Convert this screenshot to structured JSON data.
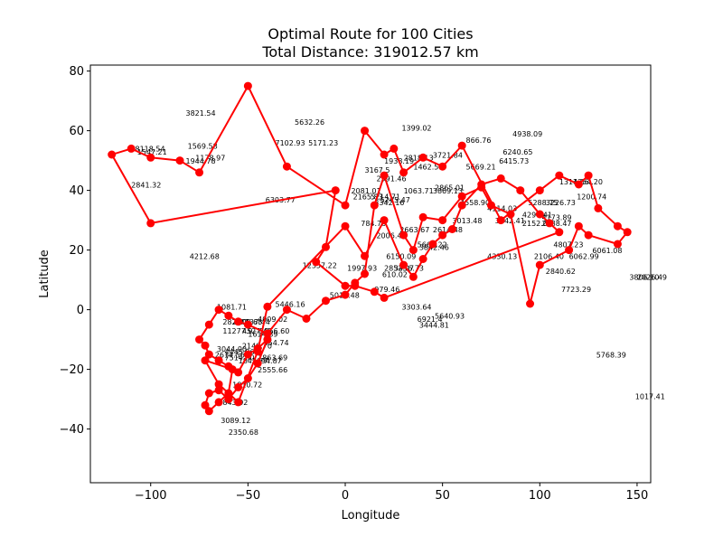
{
  "chart_data": {
    "type": "line",
    "title": "Optimal Route for 100 Cities",
    "subtitle": "Total Distance: 319012.57 km",
    "xlabel": "Longitude",
    "ylabel": "Latitude",
    "xlim": [
      -131,
      157
    ],
    "ylim": [
      -58,
      82
    ],
    "xticks": [
      -150,
      -100,
      -50,
      0,
      50,
      100,
      150
    ],
    "xtick_labels": [
      "−150",
      "−100",
      "−50",
      "0",
      "50",
      "100",
      "150"
    ],
    "yticks": [
      -40,
      -20,
      0,
      20,
      40,
      60,
      80
    ],
    "ytick_labels": [
      "−40",
      "−20",
      "0",
      "20",
      "40",
      "60",
      "80"
    ],
    "grid": false,
    "series_color": "#ff0000",
    "route": {
      "lon": [
        -120,
        -110,
        -100,
        -85,
        -75,
        -50,
        -30,
        0,
        10,
        20,
        25,
        30,
        40,
        50,
        60,
        80,
        100,
        110,
        120,
        125,
        130,
        140,
        145,
        140,
        125,
        120,
        115,
        100,
        95,
        85,
        75,
        70,
        60,
        50,
        40,
        35,
        30,
        20,
        15,
        10,
        5,
        0,
        -10,
        -20,
        -30,
        -40,
        -50,
        -55,
        -60,
        -65,
        -70,
        -75,
        -72,
        -70,
        -65,
        -60,
        -55,
        -50,
        -45,
        -40,
        -45,
        -50,
        -55,
        -60,
        -65,
        -70,
        -72,
        -70,
        -65,
        -60,
        -58,
        -72,
        -65,
        -55,
        -45,
        -40,
        0,
        10,
        20,
        30,
        35,
        40,
        45,
        50,
        55,
        60,
        70,
        80,
        90,
        100,
        105,
        110,
        20,
        15,
        5,
        0,
        -15,
        -10,
        -5,
        -100
      ],
      "lat": [
        52,
        54,
        51,
        50,
        46,
        75,
        48,
        35,
        60,
        52,
        54,
        46,
        51,
        48,
        55,
        30,
        40,
        45,
        42,
        45,
        34,
        28,
        26,
        22,
        25,
        28,
        20,
        15,
        2,
        32,
        35,
        41,
        38,
        30,
        31,
        20,
        25,
        45,
        35,
        12,
        9,
        5,
        3,
        -3,
        0,
        -8,
        -5,
        -4,
        -2,
        0,
        -5,
        -10,
        -12,
        -15,
        -17,
        -19,
        -21,
        -15,
        -13,
        -10,
        -18,
        -23,
        -26,
        -30,
        -27,
        -28,
        -32,
        -34,
        -31,
        -28,
        -20,
        -17,
        -25,
        -31,
        -14,
        1,
        28,
        18,
        30,
        15,
        11,
        17,
        22,
        25,
        27,
        35,
        42,
        44,
        40,
        32,
        29,
        26,
        4,
        6,
        8,
        8,
        16,
        21,
        40,
        29
      ],
      "marker": "o",
      "linewidth": 2
    },
    "edge_labels": [
      {
        "text": "3821.54",
        "x": -82,
        "y": 65
      },
      {
        "text": "5632.26",
        "x": -26,
        "y": 62
      },
      {
        "text": "1399.02",
        "x": 29,
        "y": 60
      },
      {
        "text": "4938.09",
        "x": 86,
        "y": 58
      },
      {
        "text": "866.76",
        "x": 62,
        "y": 56
      },
      {
        "text": "8118.54",
        "x": -108,
        "y": 53
      },
      {
        "text": "1547.21",
        "x": -107,
        "y": 52
      },
      {
        "text": "1569.58",
        "x": -81,
        "y": 54
      },
      {
        "text": "7102.93",
        "x": -36,
        "y": 55
      },
      {
        "text": "5171.23",
        "x": -19,
        "y": 55
      },
      {
        "text": "6240.65",
        "x": 81,
        "y": 52
      },
      {
        "text": "1178.97",
        "x": -77,
        "y": 50
      },
      {
        "text": "1944.78",
        "x": -82,
        "y": 49
      },
      {
        "text": "3721.84",
        "x": 45,
        "y": 51
      },
      {
        "text": "1938.19",
        "x": 20,
        "y": 49
      },
      {
        "text": "2818.13",
        "x": 30,
        "y": 50
      },
      {
        "text": "6415.73",
        "x": 79,
        "y": 49
      },
      {
        "text": "5669.21",
        "x": 62,
        "y": 47
      },
      {
        "text": "1462.59",
        "x": 35,
        "y": 47
      },
      {
        "text": "3167.5",
        "x": 10,
        "y": 46
      },
      {
        "text": "2591.46",
        "x": 16,
        "y": 43
      },
      {
        "text": "1314.86",
        "x": 110,
        "y": 42
      },
      {
        "text": "1354.20",
        "x": 117,
        "y": 42
      },
      {
        "text": "2841.32",
        "x": -110,
        "y": 41
      },
      {
        "text": "2865.01",
        "x": 46,
        "y": 40
      },
      {
        "text": "1063.71",
        "x": 30,
        "y": 39
      },
      {
        "text": "3869.13",
        "x": 45,
        "y": 39
      },
      {
        "text": "1200.74",
        "x": 119,
        "y": 37
      },
      {
        "text": "2081.01",
        "x": 3,
        "y": 39
      },
      {
        "text": "2165.83",
        "x": 4,
        "y": 37
      },
      {
        "text": "5214.71",
        "x": 13,
        "y": 37
      },
      {
        "text": "5245.47",
        "x": 18,
        "y": 36
      },
      {
        "text": "6303.77",
        "x": -41,
        "y": 36
      },
      {
        "text": "3342.16",
        "x": 15,
        "y": 35
      },
      {
        "text": "4558.90",
        "x": 59,
        "y": 35
      },
      {
        "text": "5288.75",
        "x": 94,
        "y": 35
      },
      {
        "text": "3226.73",
        "x": 103,
        "y": 35
      },
      {
        "text": "4114.03",
        "x": 73,
        "y": 33
      },
      {
        "text": "4297.41",
        "x": 91,
        "y": 31
      },
      {
        "text": "4173.89",
        "x": 101,
        "y": 30
      },
      {
        "text": "3013.48",
        "x": 55,
        "y": 29
      },
      {
        "text": "3642.41",
        "x": 77,
        "y": 29
      },
      {
        "text": "2152.08",
        "x": 91,
        "y": 28
      },
      {
        "text": "2888.47",
        "x": 101,
        "y": 28
      },
      {
        "text": "784.70",
        "x": 8,
        "y": 28
      },
      {
        "text": "2663.67",
        "x": 28,
        "y": 26
      },
      {
        "text": "2614.48",
        "x": 45,
        "y": 26
      },
      {
        "text": "2006.40",
        "x": 16,
        "y": 24
      },
      {
        "text": "4807.23",
        "x": 107,
        "y": 21
      },
      {
        "text": "5666.22",
        "x": 37,
        "y": 21
      },
      {
        "text": "3842.46",
        "x": 38,
        "y": 20
      },
      {
        "text": "6061.08",
        "x": 127,
        "y": 19
      },
      {
        "text": "6150.09",
        "x": 21,
        "y": 17
      },
      {
        "text": "6062.99",
        "x": 115,
        "y": 17
      },
      {
        "text": "4330.13",
        "x": 73,
        "y": 17
      },
      {
        "text": "2106.40",
        "x": 97,
        "y": 17
      },
      {
        "text": "4212.68",
        "x": -80,
        "y": 17
      },
      {
        "text": "12357.22",
        "x": -22,
        "y": 14
      },
      {
        "text": "1997.93",
        "x": 1,
        "y": 13
      },
      {
        "text": "2852.07",
        "x": 20,
        "y": 13
      },
      {
        "text": "3456.73",
        "x": 25,
        "y": 13
      },
      {
        "text": "2840.62",
        "x": 103,
        "y": 12
      },
      {
        "text": "3806.10",
        "x": 146,
        "y": 10
      },
      {
        "text": "2026.49",
        "x": 150,
        "y": 10
      },
      {
        "text": "610.02",
        "x": 19,
        "y": 11
      },
      {
        "text": "5013.48",
        "x": -8,
        "y": 4
      },
      {
        "text": "979.46",
        "x": 15,
        "y": 6
      },
      {
        "text": "7723.29",
        "x": 111,
        "y": 6
      },
      {
        "text": "5446.16",
        "x": -36,
        "y": 1
      },
      {
        "text": "3303.64",
        "x": 29,
        "y": 0
      },
      {
        "text": "1081.71",
        "x": -66,
        "y": 0
      },
      {
        "text": "5640.93",
        "x": 46,
        "y": -3
      },
      {
        "text": "6921.4",
        "x": 37,
        "y": -4
      },
      {
        "text": "4009.02",
        "x": -45,
        "y": -4
      },
      {
        "text": "4437.44",
        "x": -54,
        "y": -5
      },
      {
        "text": "282.37",
        "x": -63,
        "y": -5
      },
      {
        "text": "2508.68",
        "x": -58,
        "y": -5
      },
      {
        "text": "3444.81",
        "x": 38,
        "y": -6
      },
      {
        "text": "5866.60",
        "x": -44,
        "y": -8
      },
      {
        "text": "4527.45",
        "x": -53,
        "y": -8
      },
      {
        "text": "11277.9",
        "x": -63,
        "y": -8
      },
      {
        "text": "1614.89",
        "x": -50,
        "y": -9
      },
      {
        "text": "554.74",
        "x": -42,
        "y": -12
      },
      {
        "text": "2149.70",
        "x": -53,
        "y": -13
      },
      {
        "text": "3044.00",
        "x": -66,
        "y": -14
      },
      {
        "text": "4445.86",
        "x": -62,
        "y": -15
      },
      {
        "text": "5768.39",
        "x": 129,
        "y": -16
      },
      {
        "text": "2614.56",
        "x": -67,
        "y": -16
      },
      {
        "text": "7514.80",
        "x": -62,
        "y": -17
      },
      {
        "text": "1863.69",
        "x": -45,
        "y": -17
      },
      {
        "text": "3694.87",
        "x": -48,
        "y": -18
      },
      {
        "text": "1847.77",
        "x": -55,
        "y": -18
      },
      {
        "text": "2555.66",
        "x": -45,
        "y": -21
      },
      {
        "text": "1810.72",
        "x": -58,
        "y": -26
      },
      {
        "text": "1017.41",
        "x": 149,
        "y": -30
      },
      {
        "text": "843.92",
        "x": -63,
        "y": -32
      },
      {
        "text": "3089.12",
        "x": -64,
        "y": -38
      },
      {
        "text": "2350.68",
        "x": -60,
        "y": -42
      }
    ]
  }
}
